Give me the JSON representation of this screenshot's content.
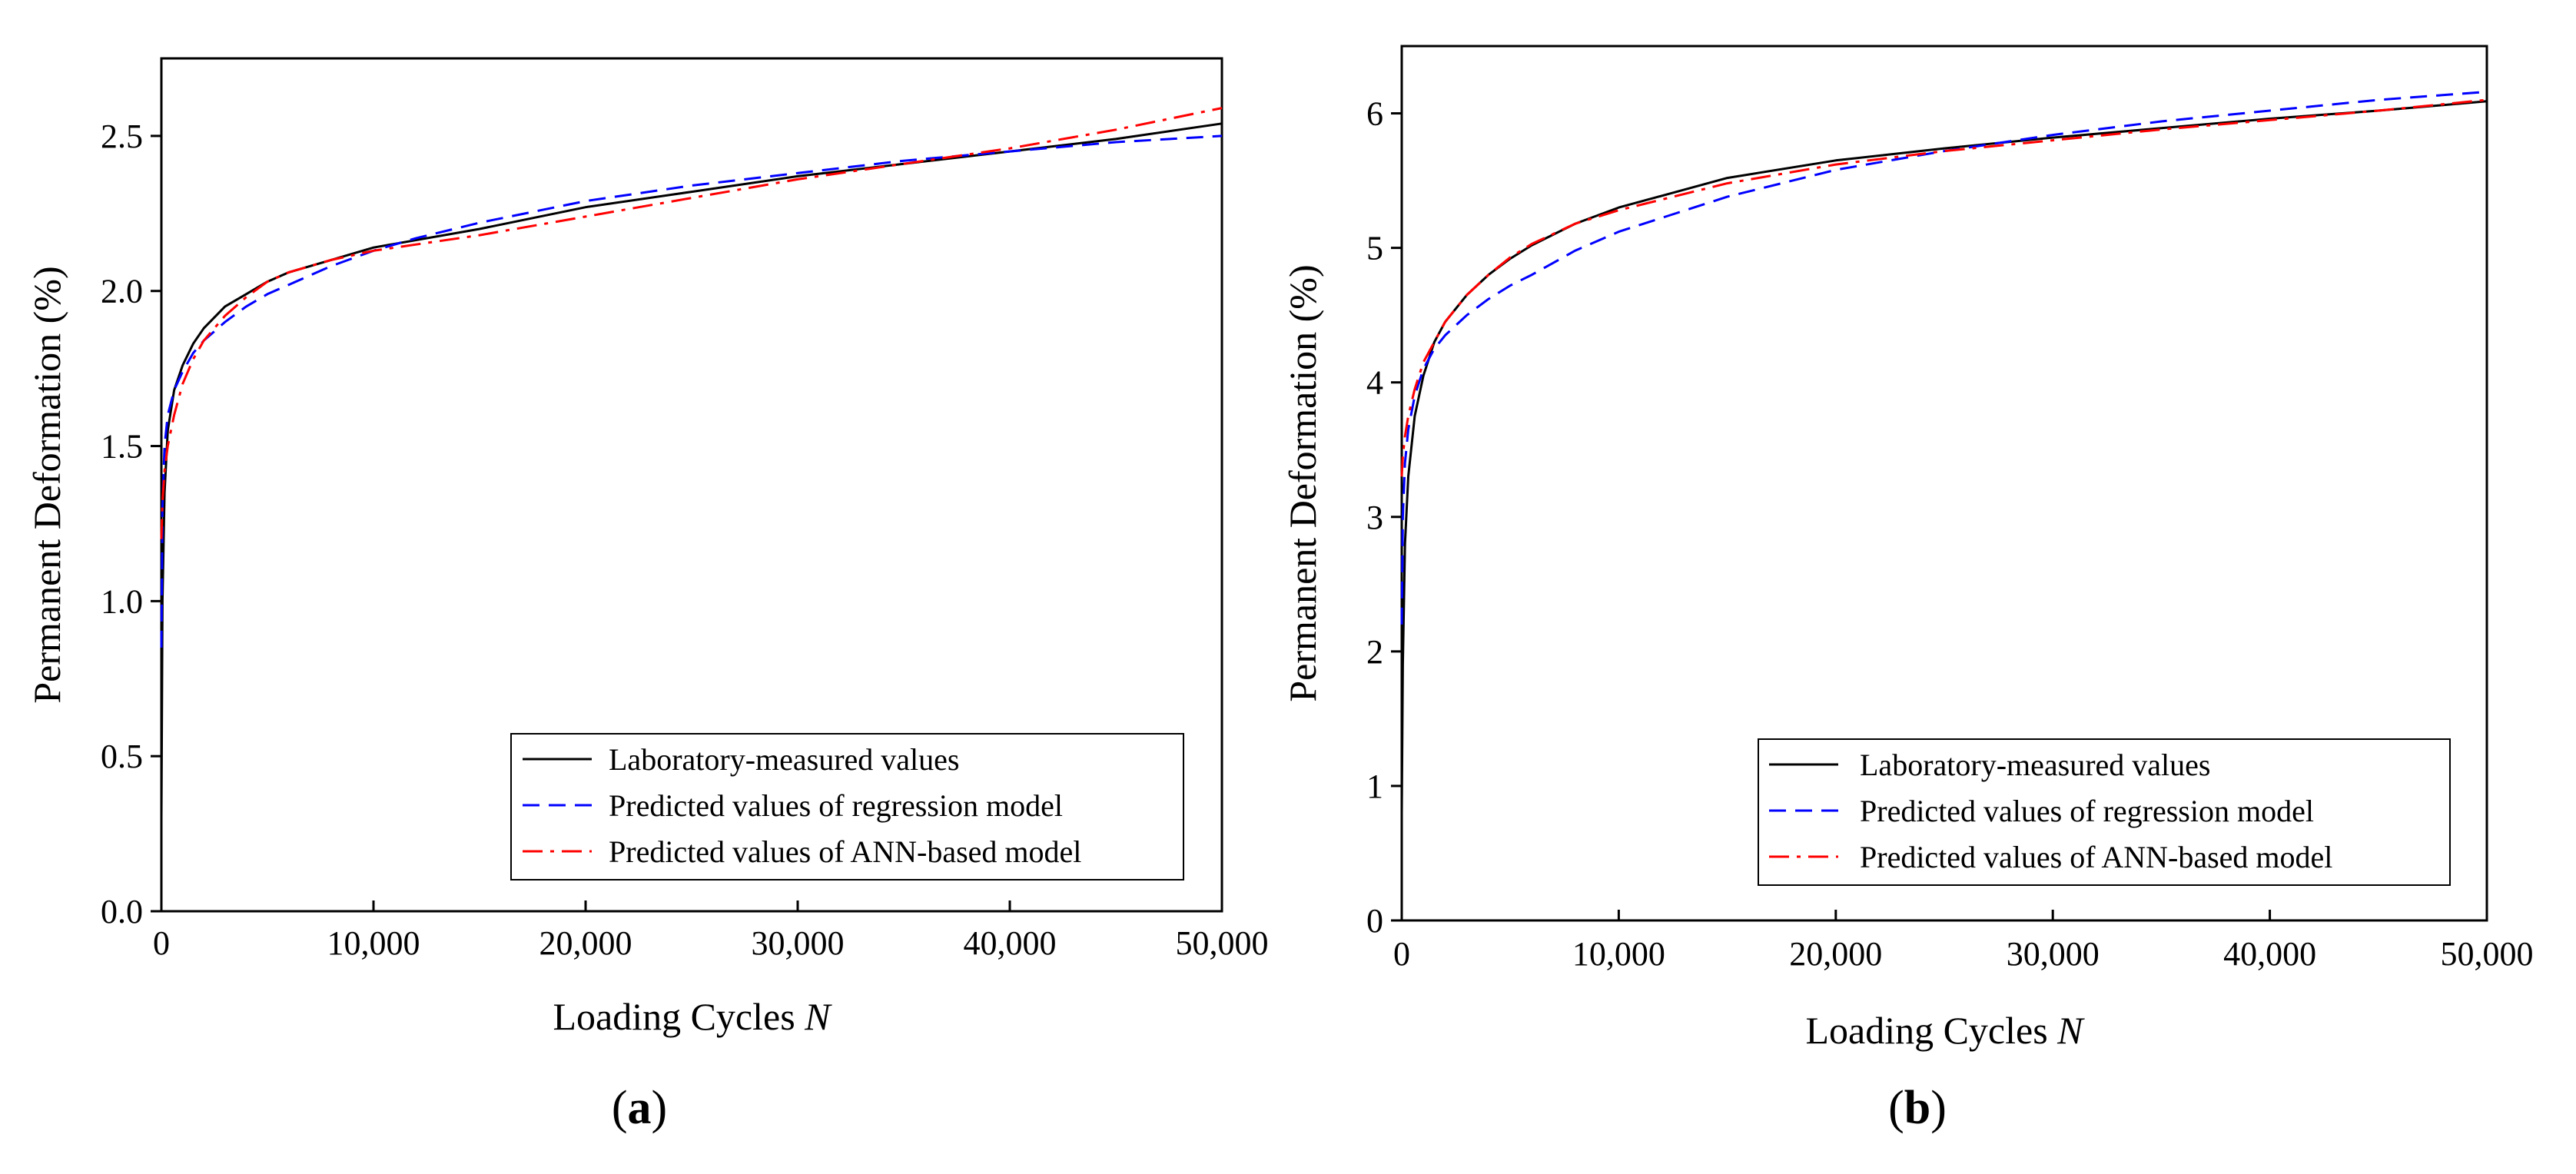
{
  "figure": {
    "panels": [
      {
        "label_open": "(",
        "label_letter": "a",
        "label_close": ")"
      },
      {
        "label_open": "(",
        "label_letter": "b",
        "label_close": ")"
      }
    ]
  },
  "chart_data": [
    {
      "type": "line",
      "panel": "a",
      "title": "",
      "xlabel": "Loading Cycles",
      "xlabel_var": "N",
      "ylabel": "Permanent Deformation (%)",
      "xlim": [
        0,
        50000
      ],
      "ylim": [
        0,
        2.75
      ],
      "xticks": [
        0,
        10000,
        20000,
        30000,
        40000,
        50000
      ],
      "xtick_labels": [
        "0",
        "10,000",
        "20,000",
        "30,000",
        "40,000",
        "50,000"
      ],
      "yticks": [
        0,
        0.5,
        1.0,
        1.5,
        2.0,
        2.5
      ],
      "ytick_labels": [
        "0.0",
        "0.5",
        "1.0",
        "1.5",
        "2.0",
        "2.5"
      ],
      "legend_position": "bottom-right",
      "series": [
        {
          "name": "Laboratory-measured values",
          "color": "#000000",
          "style": "solid",
          "x": [
            0,
            50,
            150,
            300,
            600,
            1000,
            1500,
            2000,
            3000,
            4000,
            5000,
            6000,
            8000,
            10000,
            15000,
            20000,
            25000,
            30000,
            35000,
            40000,
            45000,
            50000
          ],
          "y": [
            0.3,
            1.0,
            1.35,
            1.55,
            1.68,
            1.76,
            1.83,
            1.88,
            1.95,
            1.99,
            2.03,
            2.06,
            2.1,
            2.14,
            2.2,
            2.27,
            2.32,
            2.37,
            2.41,
            2.45,
            2.49,
            2.54
          ]
        },
        {
          "name": "Predicted values of regression model",
          "color": "#0000ff",
          "style": "dashed",
          "x": [
            0,
            50,
            150,
            300,
            600,
            1000,
            1500,
            2000,
            3000,
            4000,
            5000,
            6000,
            8000,
            10000,
            12000,
            15000,
            20000,
            25000,
            30000,
            35000,
            40000,
            45000,
            50000
          ],
          "y": [
            0.85,
            1.3,
            1.5,
            1.6,
            1.68,
            1.74,
            1.8,
            1.84,
            1.9,
            1.95,
            1.99,
            2.02,
            2.08,
            2.13,
            2.17,
            2.22,
            2.29,
            2.34,
            2.38,
            2.42,
            2.45,
            2.48,
            2.5
          ]
        },
        {
          "name": "Predicted values of ANN-based model",
          "color": "#ff0000",
          "style": "dashdot",
          "x": [
            0,
            50,
            150,
            300,
            600,
            1000,
            1500,
            2000,
            3000,
            4000,
            5000,
            6000,
            8000,
            10000,
            15000,
            20000,
            25000,
            30000,
            35000,
            40000,
            45000,
            50000
          ],
          "y": [
            1.2,
            1.32,
            1.42,
            1.5,
            1.6,
            1.7,
            1.78,
            1.84,
            1.92,
            1.98,
            2.03,
            2.06,
            2.1,
            2.13,
            2.18,
            2.24,
            2.3,
            2.36,
            2.41,
            2.46,
            2.52,
            2.59
          ]
        }
      ]
    },
    {
      "type": "line",
      "panel": "b",
      "title": "",
      "xlabel": "Loading Cycles",
      "xlabel_var": "N",
      "ylabel": "Permanent Deformation (%)",
      "xlim": [
        0,
        50000
      ],
      "ylim": [
        0,
        6.5
      ],
      "xticks": [
        0,
        10000,
        20000,
        30000,
        40000,
        50000
      ],
      "xtick_labels": [
        "0",
        "10,000",
        "20,000",
        "30,000",
        "40,000",
        "50,000"
      ],
      "yticks": [
        0,
        1,
        2,
        3,
        4,
        5,
        6
      ],
      "ytick_labels": [
        "0",
        "1",
        "2",
        "3",
        "4",
        "5",
        "6"
      ],
      "legend_position": "bottom-right",
      "series": [
        {
          "name": "Laboratory-measured values",
          "color": "#000000",
          "style": "solid",
          "x": [
            0,
            50,
            150,
            300,
            600,
            1000,
            1500,
            2000,
            3000,
            4000,
            5000,
            6000,
            8000,
            10000,
            15000,
            20000,
            25000,
            30000,
            35000,
            40000,
            45000,
            50000
          ],
          "y": [
            0.8,
            1.9,
            2.8,
            3.3,
            3.75,
            4.05,
            4.3,
            4.45,
            4.65,
            4.8,
            4.92,
            5.02,
            5.18,
            5.3,
            5.52,
            5.65,
            5.74,
            5.82,
            5.89,
            5.96,
            6.02,
            6.09
          ]
        },
        {
          "name": "Predicted values of regression model",
          "color": "#0000ff",
          "style": "dashed",
          "x": [
            0,
            50,
            150,
            300,
            600,
            1000,
            1500,
            2000,
            3000,
            4000,
            5000,
            6000,
            8000,
            10000,
            15000,
            20000,
            25000,
            30000,
            35000,
            40000,
            45000,
            50000
          ],
          "y": [
            2.2,
            3.0,
            3.4,
            3.65,
            3.9,
            4.1,
            4.25,
            4.35,
            4.5,
            4.62,
            4.72,
            4.8,
            4.98,
            5.12,
            5.38,
            5.58,
            5.72,
            5.84,
            5.94,
            6.02,
            6.1,
            6.16
          ]
        },
        {
          "name": "Predicted values of ANN-based model",
          "color": "#ff0000",
          "style": "dashdot",
          "x": [
            0,
            50,
            150,
            300,
            600,
            1000,
            1500,
            2000,
            3000,
            4000,
            5000,
            6000,
            8000,
            10000,
            15000,
            20000,
            25000,
            30000,
            35000,
            40000,
            45000,
            50000
          ],
          "y": [
            3.3,
            3.45,
            3.6,
            3.75,
            3.95,
            4.15,
            4.3,
            4.45,
            4.65,
            4.8,
            4.93,
            5.03,
            5.18,
            5.28,
            5.48,
            5.62,
            5.72,
            5.8,
            5.88,
            5.95,
            6.02,
            6.1
          ]
        }
      ]
    }
  ]
}
